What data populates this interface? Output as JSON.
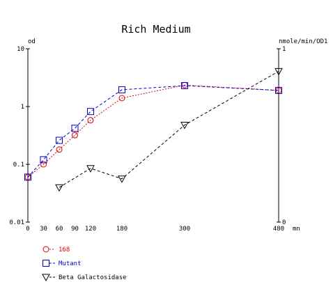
{
  "chart_data": {
    "type": "line",
    "title": "Rich Medium",
    "y_left_label": "od",
    "y_right_label": "nmole/min/OD1",
    "x_unit": "mn",
    "x_ticks": [
      "0",
      "30",
      "60",
      "90",
      "120",
      "180",
      "300",
      "480"
    ],
    "xlim": [
      0,
      480
    ],
    "y_left_scale": "log",
    "y_left_ticks": [
      "0.01",
      "0.1",
      "1",
      "10"
    ],
    "ylim_left": [
      0.01,
      10
    ],
    "y_right_ticks": [
      "0",
      "1"
    ],
    "ylim_right": [
      0,
      1
    ],
    "grid": false,
    "legend_position": "bottom-left",
    "series": [
      {
        "name": "168",
        "axis": "left",
        "color": "#dd0000",
        "marker": "circle",
        "line": "dotted",
        "x": [
          0,
          30,
          60,
          90,
          120,
          180,
          300,
          480
        ],
        "y": [
          0.06,
          0.1,
          0.18,
          0.32,
          0.58,
          1.4,
          2.35,
          1.9
        ]
      },
      {
        "name": "Mutant",
        "axis": "left",
        "color": "#0000cc",
        "marker": "square",
        "line": "dashed",
        "x": [
          0,
          30,
          60,
          90,
          120,
          180,
          300,
          480
        ],
        "y": [
          0.06,
          0.12,
          0.26,
          0.42,
          0.82,
          1.95,
          2.3,
          1.9
        ]
      },
      {
        "name": "Beta Galactosidase",
        "axis": "right",
        "color": "#000000",
        "marker": "triangle-down",
        "line": "dashed",
        "x": [
          60,
          120,
          180,
          300,
          480
        ],
        "y": [
          0.2,
          0.31,
          0.25,
          0.56,
          0.87
        ]
      }
    ]
  }
}
